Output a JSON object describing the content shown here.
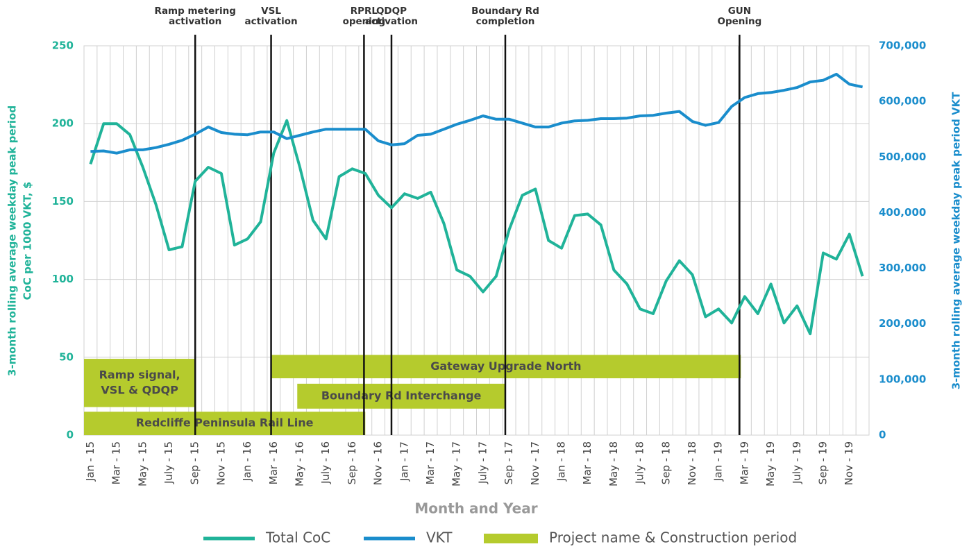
{
  "chart_data": {
    "type": "line",
    "categories": [
      "Jan - 15",
      null,
      "Mar - 15",
      null,
      "May - 15",
      null,
      "July - 15",
      null,
      "Sep - 15",
      null,
      "Nov - 15",
      null,
      "Jan - 16",
      null,
      "Mar - 16",
      null,
      "May - 16",
      null,
      "July - 16",
      null,
      "Sep - 16",
      null,
      "Nov - 16",
      null,
      "Jan - 17",
      null,
      "Mar - 17",
      null,
      "May - 17",
      null,
      "July - 17",
      null,
      "Sep - 17",
      null,
      "Nov - 17",
      null,
      "Jan - 18",
      null,
      "Mar - 18",
      null,
      "May - 18",
      null,
      "July - 18",
      null,
      "Sep - 18",
      null,
      "Nov - 18",
      null,
      "Jan - 19",
      null,
      "Mar - 19",
      null,
      "May - 19",
      null,
      "July - 19",
      null,
      "Sep - 19",
      null,
      "Nov - 19",
      null
    ],
    "series": [
      {
        "name": "Total CoC",
        "color": "#20b399",
        "values": [
          174,
          200,
          200,
          193,
          172,
          148,
          119,
          121,
          163,
          172,
          168,
          122,
          126,
          137,
          181,
          202,
          172,
          138,
          126,
          166,
          171,
          168,
          154,
          146,
          155,
          152,
          156,
          136,
          106,
          102,
          92,
          102,
          132,
          154,
          158,
          125,
          120,
          141,
          142,
          135,
          106,
          97,
          81,
          78,
          99,
          112,
          103,
          76,
          81,
          72,
          89,
          78,
          97,
          72,
          83,
          65,
          117,
          113,
          129,
          102
        ]
      },
      {
        "name": "VKT",
        "color": "#1a8dcc",
        "axis": "y2",
        "values": [
          510000,
          511000,
          507000,
          513000,
          513000,
          517000,
          523000,
          530000,
          541000,
          554000,
          544000,
          541000,
          540000,
          545000,
          545000,
          533000,
          539000,
          545000,
          550000,
          550000,
          550000,
          550000,
          529000,
          522000,
          524000,
          539000,
          541000,
          550000,
          559000,
          566000,
          574000,
          568000,
          568000,
          561000,
          554000,
          554000,
          561000,
          565000,
          566000,
          569000,
          569000,
          570000,
          574000,
          575000,
          579000,
          582000,
          564000,
          557000,
          562000,
          591000,
          607000,
          614000,
          616000,
          620000,
          625000,
          635000,
          638000,
          649000,
          631000,
          626000
        ]
      }
    ],
    "ylim": [
      0,
      250
    ],
    "yticks": [
      0,
      50,
      100,
      150,
      200,
      250
    ],
    "y2lim": [
      0,
      700000
    ],
    "y2ticks": [
      0,
      {
        "value": 100000,
        "label": "100,000"
      },
      {
        "value": 200000,
        "label": "200,000"
      },
      {
        "value": 300000,
        "label": "300,000"
      },
      {
        "value": 400000,
        "label": "400,000"
      },
      {
        "value": 500000,
        "label": "500,000"
      },
      {
        "value": 600000,
        "label": "600,000"
      },
      {
        "value": 700000,
        "label": "700,000"
      }
    ],
    "ylabel": [
      "3-month rolling average weekday peak period",
      "CoC per 1000 VKT, $"
    ],
    "y2label": "3-month rolling average weekday peak period VKT",
    "xlabel": "Month and Year",
    "grid": true,
    "events": [
      {
        "label": [
          "Ramp metering",
          "activation"
        ],
        "x": 8
      },
      {
        "label": [
          "VSL",
          "activation"
        ],
        "x": 13.8
      },
      {
        "label": [
          "RPRL",
          "opening"
        ],
        "x": 20.9
      },
      {
        "label": [
          "QDQP",
          "activation"
        ],
        "x": 23
      },
      {
        "label": [
          "Boundary Rd",
          "completion"
        ],
        "x": 31.7
      },
      {
        "label": [
          "GUN",
          "Opening"
        ],
        "x": 49.6
      }
    ],
    "periods_name": "Project name & Construction period",
    "periods_color": "#b5cb2d",
    "periods": [
      {
        "label": [
          "Ramp signal,",
          "VSL & QDQP"
        ],
        "start": -0.5,
        "end": 8,
        "low": 18,
        "high": 49
      },
      {
        "label": [
          "Gateway Upgrade North"
        ],
        "start": 13.8,
        "end": 49.7,
        "low": 36.5,
        "high": 51.5
      },
      {
        "label": [
          "Boundary Rd Interchange"
        ],
        "start": 15.8,
        "end": 31.7,
        "low": 17,
        "high": 33
      },
      {
        "label": [
          "Redcliffe Peninsula Rail Line"
        ],
        "start": -0.5,
        "end": 21,
        "low": 0,
        "high": 15
      }
    ]
  }
}
